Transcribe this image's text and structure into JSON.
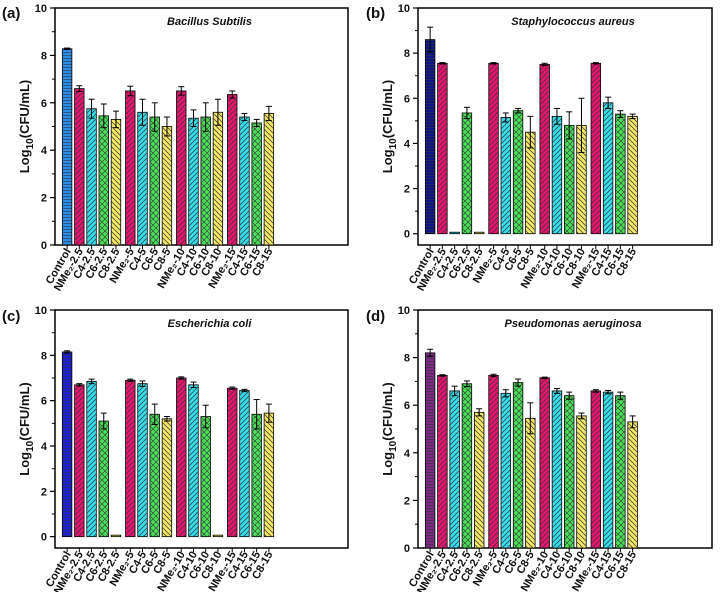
{
  "chart_data": [
    {
      "type": "bar",
      "panel_label": "(a)",
      "title": "Bacillus Subtilis",
      "ylabel_main": "Log",
      "ylabel_sub": "10",
      "ylabel_tail": "(CFU/mL)",
      "ylim": [
        0,
        10
      ],
      "yticks": [
        "0",
        "2",
        "4",
        "6",
        "8",
        "10"
      ],
      "grid": false,
      "categories": [
        "Control",
        "NMe₂-2.5",
        "C4-2.5",
        "C6-2.5",
        "C8-2.5",
        "NMe₂-5",
        "C4-5",
        "C6-5",
        "C8-5",
        "NMe₂-10",
        "C4-10",
        "C6-10",
        "C8-10",
        "NMe₂-15",
        "C4-15",
        "C6-15",
        "C8-15"
      ],
      "values": [
        8.28,
        6.6,
        5.75,
        5.45,
        5.3,
        6.5,
        5.6,
        5.4,
        5.0,
        6.5,
        5.35,
        5.4,
        5.6,
        6.35,
        5.4,
        5.15,
        5.55
      ],
      "errors": [
        0.03,
        0.12,
        0.4,
        0.5,
        0.35,
        0.2,
        0.55,
        0.6,
        0.4,
        0.18,
        0.35,
        0.6,
        0.55,
        0.15,
        0.15,
        0.15,
        0.3
      ],
      "colors": [
        "#2a8ee8",
        "#e8156e",
        "#35dcea",
        "#49de58",
        "#f3e766",
        "#e8156e",
        "#35dcea",
        "#49de58",
        "#f3e766",
        "#e8156e",
        "#35dcea",
        "#49de58",
        "#f3e766",
        "#e8156e",
        "#35dcea",
        "#49de58",
        "#f3e766"
      ]
    },
    {
      "type": "bar",
      "panel_label": "(b)",
      "title": "Staphylococcus aureus",
      "ylabel_main": "Log",
      "ylabel_sub": "10",
      "ylabel_tail": "(CFU/mL)",
      "ylim": [
        -0.5,
        10
      ],
      "yticks": [
        "0",
        "2",
        "4",
        "6",
        "8",
        "10"
      ],
      "grid": false,
      "categories": [
        "Control",
        "NMe₂-2.5",
        "C4-2.5",
        "C6-2.5",
        "C8-2.5",
        "NMe₂-5",
        "C4-5",
        "C6-5",
        "C8-5",
        "NMe₂-10",
        "C4-10",
        "C6-10",
        "C8-10",
        "NMe₂-15",
        "C4-15",
        "C6-15",
        "C8-15"
      ],
      "values": [
        8.6,
        7.55,
        0,
        5.35,
        0,
        7.55,
        5.15,
        5.45,
        4.5,
        7.5,
        5.2,
        4.8,
        4.8,
        7.55,
        5.8,
        5.3,
        5.2
      ],
      "errors": [
        0.55,
        0.03,
        0,
        0.25,
        0,
        0.03,
        0.2,
        0.1,
        0.7,
        0.05,
        0.35,
        0.6,
        1.2,
        0.03,
        0.25,
        0.15,
        0.1
      ],
      "colors": [
        "#101486",
        "#e8156e",
        "#35dcea",
        "#49de58",
        "#f3e766",
        "#e8156e",
        "#35dcea",
        "#49de58",
        "#f3e766",
        "#e8156e",
        "#35dcea",
        "#49de58",
        "#f3e766",
        "#e8156e",
        "#35dcea",
        "#49de58",
        "#f3e766"
      ]
    },
    {
      "type": "bar",
      "panel_label": "(c)",
      "title": "Escherichia coli",
      "ylabel_main": "Log",
      "ylabel_sub": "10",
      "ylabel_tail": "(CFU/mL)",
      "ylim": [
        -0.5,
        10
      ],
      "yticks": [
        "0",
        "2",
        "4",
        "6",
        "8",
        "10"
      ],
      "grid": false,
      "categories": [
        "Control",
        "NMe₂-2.5",
        "C4-2.5",
        "C6-2.5",
        "C8-2.5",
        "NMe₂-5",
        "C4-5",
        "C6-5",
        "C8-5",
        "NMe₂-10",
        "C4-10",
        "C6-10",
        "C8-10",
        "NMe₂-15",
        "C4-15",
        "C6-15",
        "C8-15"
      ],
      "values": [
        8.15,
        6.7,
        6.85,
        5.1,
        0,
        6.9,
        6.75,
        5.4,
        5.2,
        7.0,
        6.7,
        5.3,
        0,
        6.55,
        6.45,
        5.4,
        5.45
      ],
      "errors": [
        0.05,
        0.05,
        0.1,
        0.35,
        0,
        0.05,
        0.12,
        0.45,
        0.1,
        0.05,
        0.12,
        0.5,
        0,
        0.05,
        0.05,
        0.65,
        0.4
      ],
      "colors": [
        "#1f1fd8",
        "#e8156e",
        "#35dcea",
        "#49de58",
        "#f3e766",
        "#e8156e",
        "#35dcea",
        "#49de58",
        "#f3e766",
        "#e8156e",
        "#35dcea",
        "#49de58",
        "#f3e766",
        "#e8156e",
        "#35dcea",
        "#49de58",
        "#f3e766"
      ]
    },
    {
      "type": "bar",
      "panel_label": "(d)",
      "title": "Pseudomonas aeruginosa",
      "ylabel_main": "Log",
      "ylabel_sub": "10",
      "ylabel_tail": "(CFU/mL)",
      "ylim": [
        0,
        10
      ],
      "yticks": [
        "0",
        "2",
        "4",
        "6",
        "8",
        "10"
      ],
      "grid": false,
      "categories": [
        "Control",
        "NMe₂-2.5",
        "C4-2.5",
        "C6-2.5",
        "C8-2.5",
        "NMe₂-5",
        "C4-5",
        "C6-5",
        "C8-5",
        "NMe₂-10",
        "C4-10",
        "C6-10",
        "C8-10",
        "NMe₂-15",
        "C4-15",
        "C6-15",
        "C8-15"
      ],
      "values": [
        8.2,
        7.25,
        6.6,
        6.9,
        5.7,
        7.25,
        6.5,
        6.95,
        5.45,
        7.15,
        6.6,
        6.4,
        5.55,
        6.6,
        6.55,
        6.4,
        5.3
      ],
      "errors": [
        0.15,
        0.03,
        0.2,
        0.12,
        0.15,
        0.05,
        0.15,
        0.15,
        0.65,
        0.03,
        0.1,
        0.15,
        0.12,
        0.05,
        0.07,
        0.15,
        0.25
      ],
      "colors": [
        "#7d2a86",
        "#e8156e",
        "#35dcea",
        "#49de58",
        "#f3e766",
        "#e8156e",
        "#35dcea",
        "#49de58",
        "#f3e766",
        "#e8156e",
        "#35dcea",
        "#49de58",
        "#f3e766",
        "#e8156e",
        "#35dcea",
        "#49de58",
        "#f3e766"
      ]
    }
  ]
}
